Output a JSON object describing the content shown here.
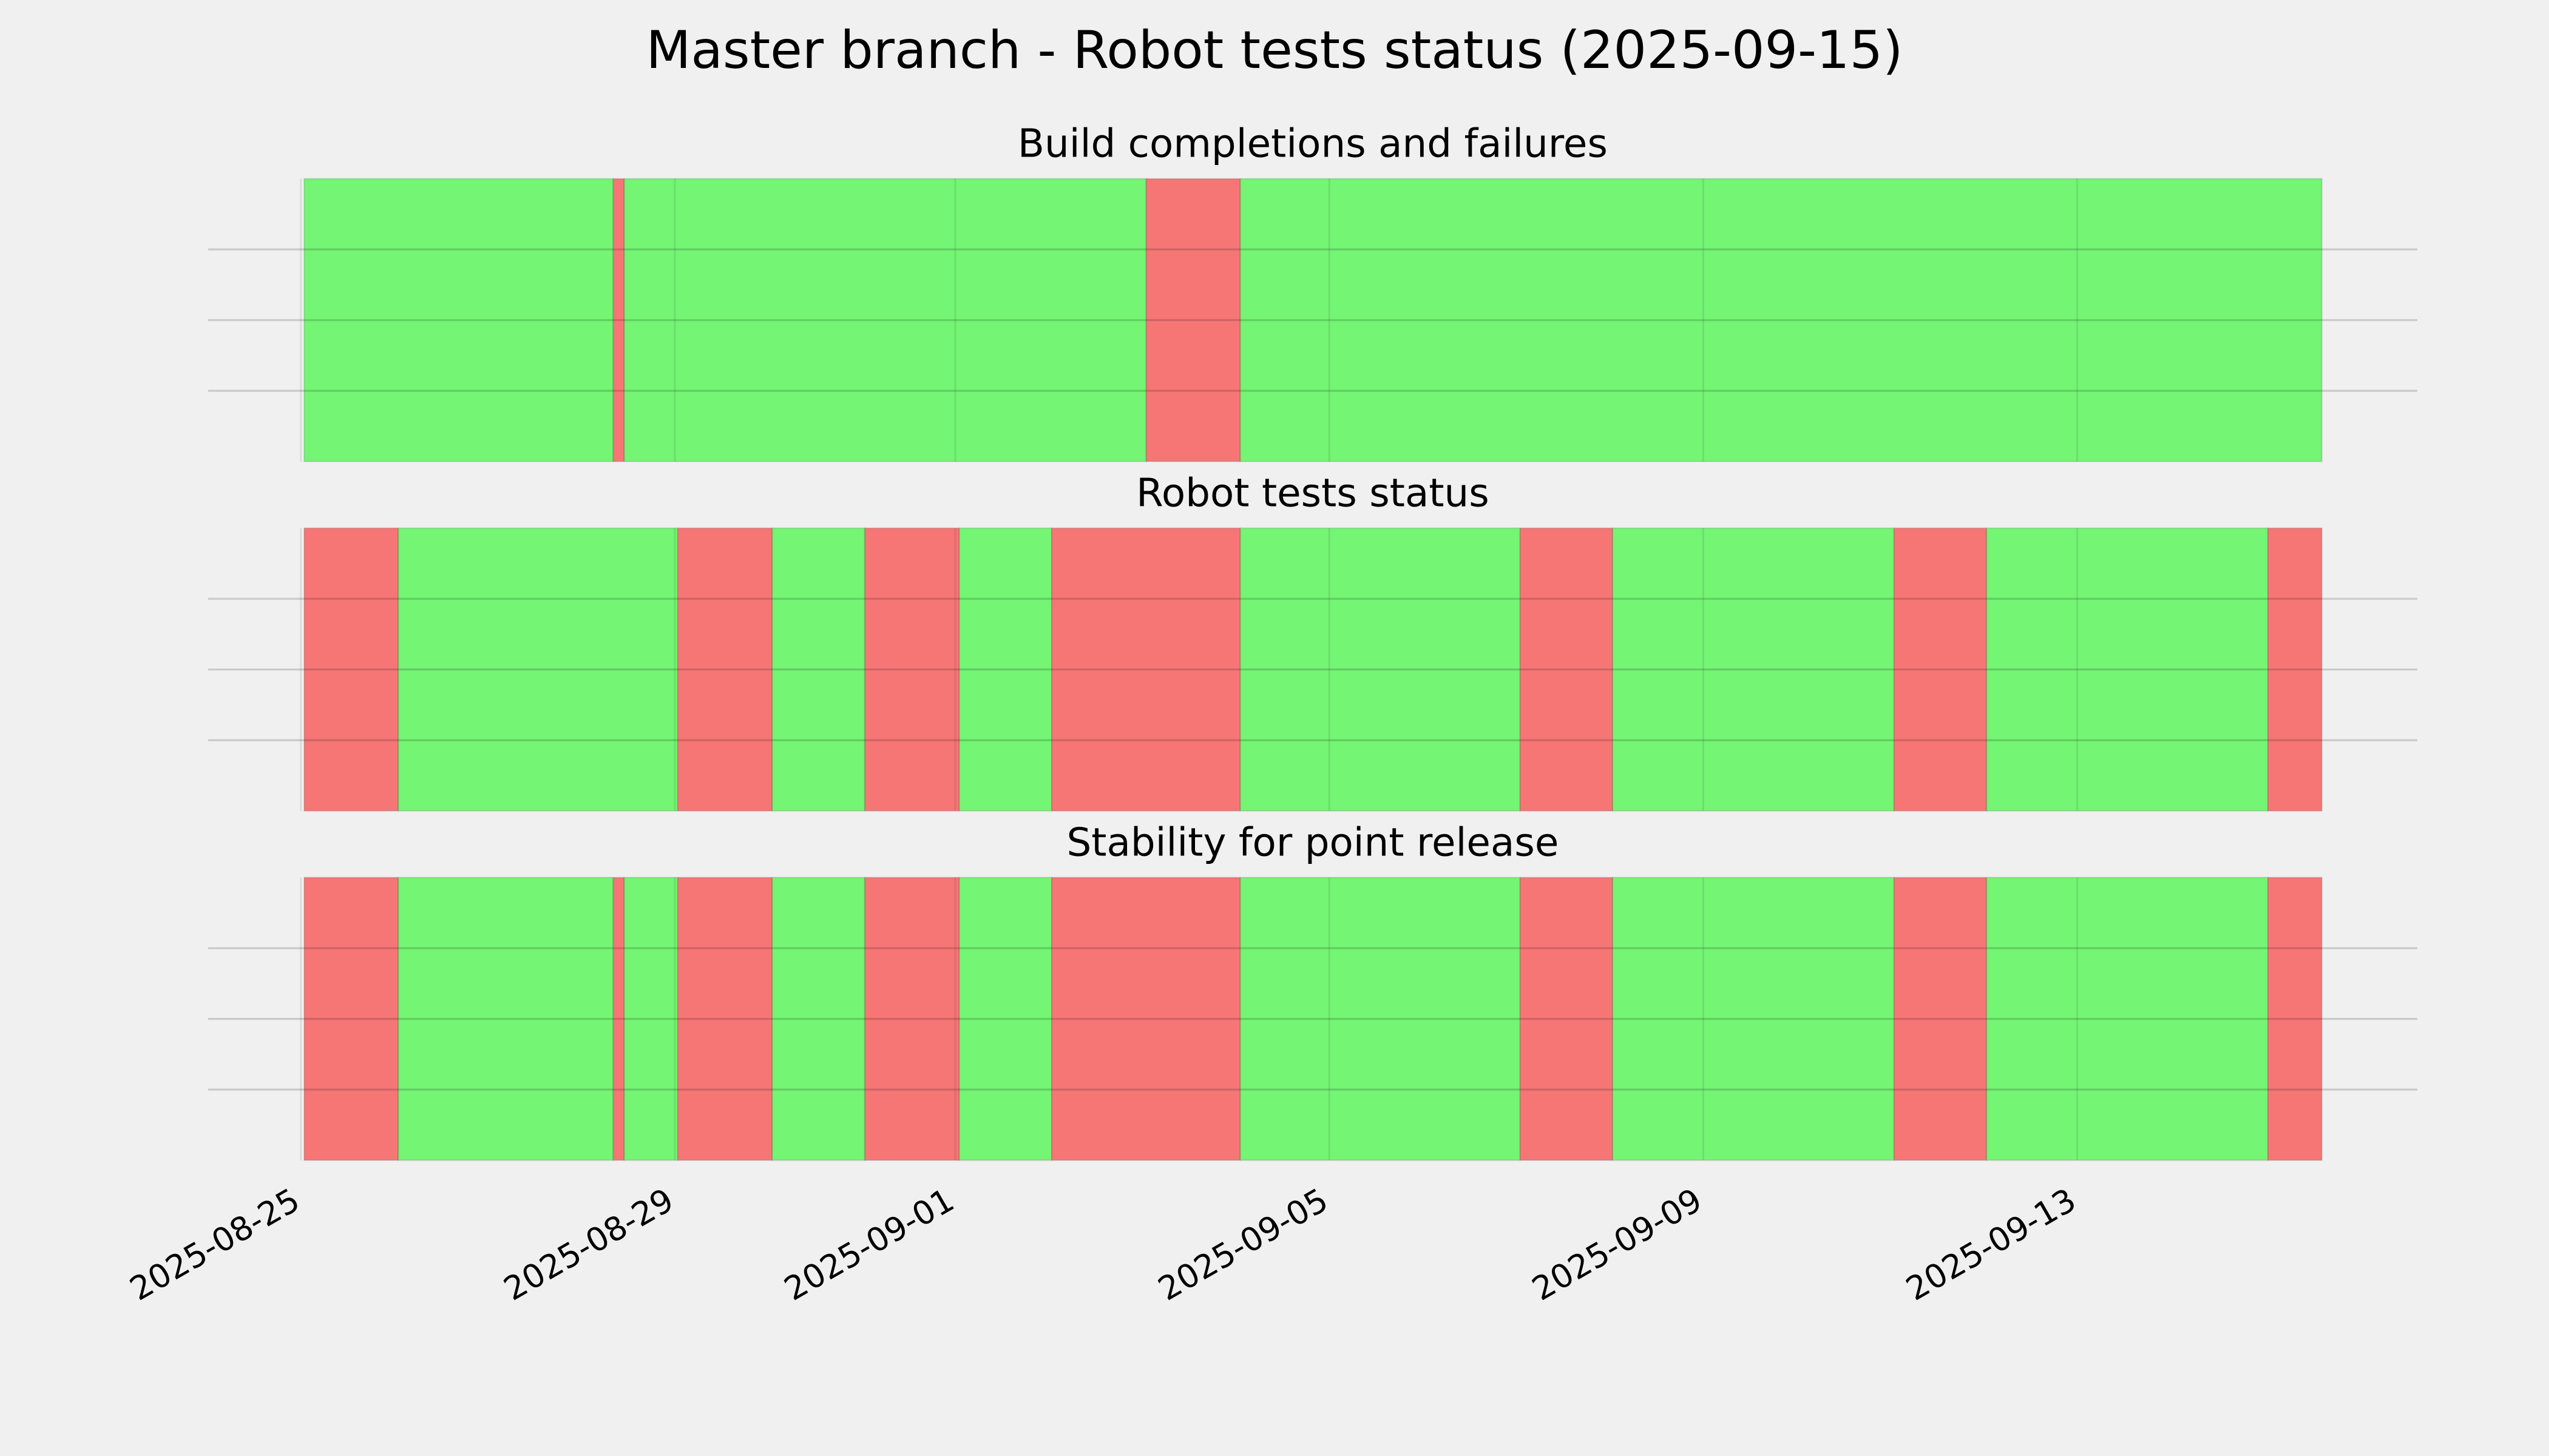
{
  "chart_data": {
    "type": "timeline",
    "title": "Master branch - Robot tests status (2025-09-15)",
    "panels": [
      {
        "title": "Build completions and failures",
        "spans": [
          {
            "start": "2025-08-25T00:50",
            "end": "2025-08-28T08:10",
            "color": "#74f574"
          },
          {
            "start": "2025-08-28T08:10",
            "end": "2025-08-28T11:00",
            "color": "#f67676"
          },
          {
            "start": "2025-08-28T11:00",
            "end": "2025-09-03T01:00",
            "color": "#74f574"
          },
          {
            "start": "2025-09-03T01:00",
            "end": "2025-09-04T01:10",
            "color": "#f67676"
          },
          {
            "start": "2025-09-04T01:10",
            "end": "2025-09-15T14:50",
            "color": "#74f574"
          }
        ]
      },
      {
        "title": "Robot tests status",
        "spans": [
          {
            "start": "2025-08-25T00:50",
            "end": "2025-08-26T01:00",
            "color": "#f67676"
          },
          {
            "start": "2025-08-26T01:00",
            "end": "2025-08-29T00:45",
            "color": "#74f574"
          },
          {
            "start": "2025-08-29T00:45",
            "end": "2025-08-30T01:00",
            "color": "#f67676"
          },
          {
            "start": "2025-08-30T01:00",
            "end": "2025-08-31T00:45",
            "color": "#74f574"
          },
          {
            "start": "2025-08-31T00:45",
            "end": "2025-09-01T01:00",
            "color": "#f67676"
          },
          {
            "start": "2025-09-01T01:00",
            "end": "2025-09-02T00:45",
            "color": "#74f574"
          },
          {
            "start": "2025-09-02T00:45",
            "end": "2025-09-04T01:10",
            "color": "#f67676"
          },
          {
            "start": "2025-09-04T01:10",
            "end": "2025-09-07T01:00",
            "color": "#74f574"
          },
          {
            "start": "2025-09-07T01:00",
            "end": "2025-09-08T00:45",
            "color": "#f67676"
          },
          {
            "start": "2025-09-08T00:45",
            "end": "2025-09-11T01:00",
            "color": "#74f574"
          },
          {
            "start": "2025-09-11T01:00",
            "end": "2025-09-12T00:45",
            "color": "#f67676"
          },
          {
            "start": "2025-09-12T00:45",
            "end": "2025-09-15T01:00",
            "color": "#74f574"
          },
          {
            "start": "2025-09-15T01:00",
            "end": "2025-09-15T14:50",
            "color": "#f67676"
          }
        ]
      },
      {
        "title": "Stability for point release",
        "spans": [
          {
            "start": "2025-08-25T00:50",
            "end": "2025-08-26T01:00",
            "color": "#f67676"
          },
          {
            "start": "2025-08-26T01:00",
            "end": "2025-08-28T08:10",
            "color": "#74f574"
          },
          {
            "start": "2025-08-28T08:10",
            "end": "2025-08-28T11:00",
            "color": "#f67676"
          },
          {
            "start": "2025-08-28T11:00",
            "end": "2025-08-29T00:45",
            "color": "#74f574"
          },
          {
            "start": "2025-08-29T00:45",
            "end": "2025-08-30T01:00",
            "color": "#f67676"
          },
          {
            "start": "2025-08-30T01:00",
            "end": "2025-08-31T00:45",
            "color": "#74f574"
          },
          {
            "start": "2025-08-31T00:45",
            "end": "2025-09-01T01:00",
            "color": "#f67676"
          },
          {
            "start": "2025-09-01T01:00",
            "end": "2025-09-02T00:45",
            "color": "#74f574"
          },
          {
            "start": "2025-09-02T00:45",
            "end": "2025-09-04T01:10",
            "color": "#f67676"
          },
          {
            "start": "2025-09-04T01:10",
            "end": "2025-09-07T01:00",
            "color": "#74f574"
          },
          {
            "start": "2025-09-07T01:00",
            "end": "2025-09-08T00:45",
            "color": "#f67676"
          },
          {
            "start": "2025-09-08T00:45",
            "end": "2025-09-11T01:00",
            "color": "#74f574"
          },
          {
            "start": "2025-09-11T01:00",
            "end": "2025-09-12T00:45",
            "color": "#f67676"
          },
          {
            "start": "2025-09-12T00:45",
            "end": "2025-09-15T01:00",
            "color": "#74f574"
          },
          {
            "start": "2025-09-15T01:00",
            "end": "2025-09-15T14:50",
            "color": "#f67676"
          }
        ]
      }
    ],
    "xlim": [
      "2025-08-24T00:10",
      "2025-09-16T15:20"
    ],
    "xticks": [
      "2025-08-25",
      "2025-08-29",
      "2025-09-01",
      "2025-09-05",
      "2025-09-09",
      "2025-09-13"
    ],
    "ylim": [
      0,
      1
    ],
    "yticks": [
      0.25,
      0.5,
      0.75
    ],
    "grid": true
  }
}
